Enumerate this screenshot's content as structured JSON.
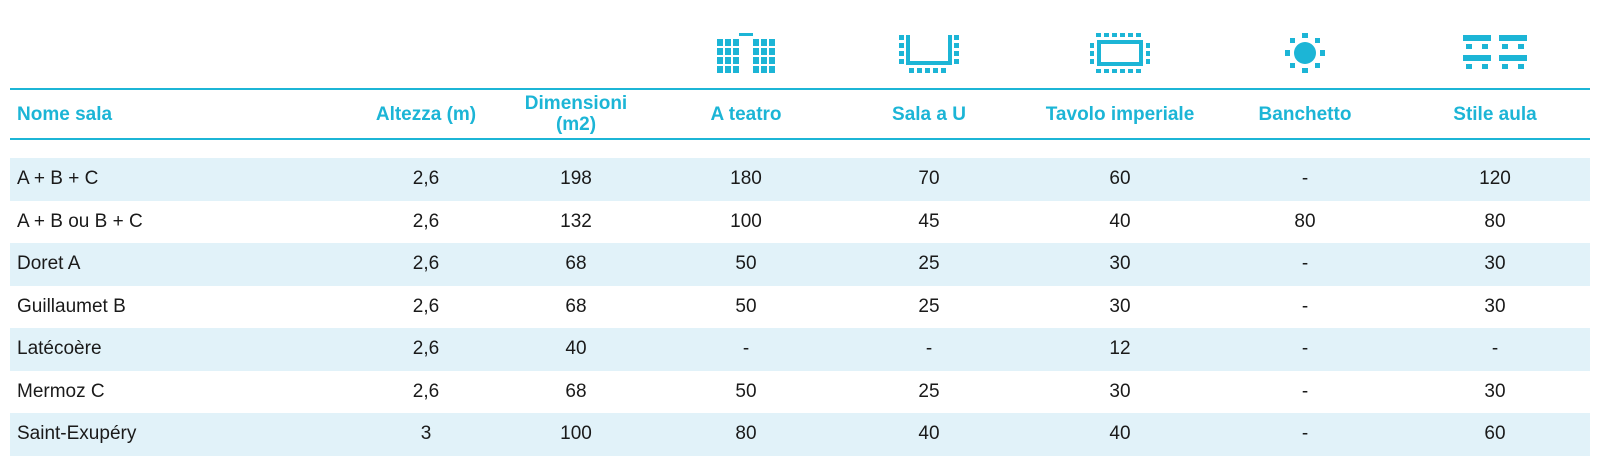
{
  "colors": {
    "accent": "#1cb5d6",
    "row_shade": "#e1f2f9",
    "text": "#1a1a1a"
  },
  "icons": {
    "theatre": "theatre-seating-icon",
    "u_shape": "u-shape-icon",
    "boardroom": "boardroom-table-icon",
    "banquet": "banquet-round-table-icon",
    "classroom": "classroom-icon"
  },
  "table": {
    "headers": [
      "Nome sala",
      "Altezza (m)",
      "Dimensioni (m2)",
      "A teatro",
      "Sala a U",
      "Tavolo imperiale",
      "Banchetto",
      "Stile aula"
    ],
    "rows": [
      [
        "A + B + C",
        "2,6",
        "198",
        "180",
        "70",
        "60",
        "-",
        "120"
      ],
      [
        "A + B ou B + C",
        "2,6",
        "132",
        "100",
        "45",
        "40",
        "80",
        "80"
      ],
      [
        "Doret A",
        "2,6",
        "68",
        "50",
        "25",
        "30",
        "-",
        "30"
      ],
      [
        "Guillaumet B",
        "2,6",
        "68",
        "50",
        "25",
        "30",
        "-",
        "30"
      ],
      [
        "Latécoère",
        "2,6",
        "40",
        "-",
        "-",
        "12",
        "-",
        "-"
      ],
      [
        "Mermoz C",
        "2,6",
        "68",
        "50",
        "25",
        "30",
        "-",
        "30"
      ],
      [
        "Saint-Exupéry",
        "3",
        "100",
        "80",
        "40",
        "40",
        "-",
        "60"
      ]
    ]
  }
}
